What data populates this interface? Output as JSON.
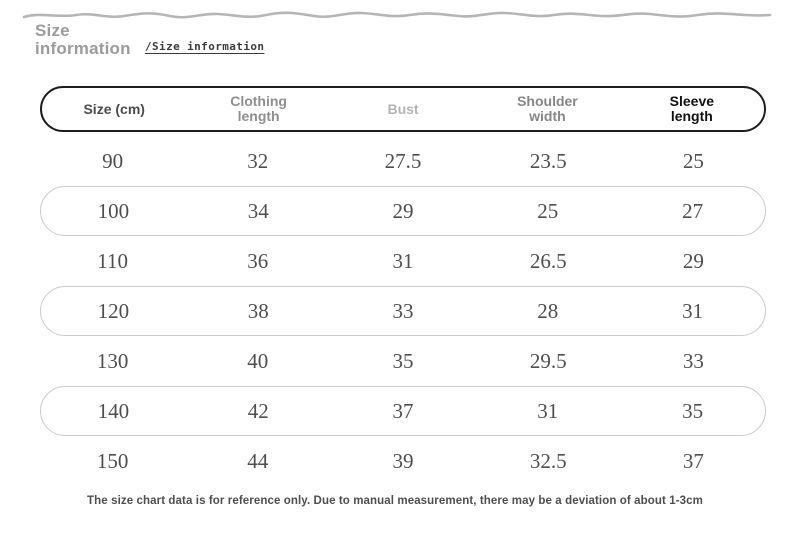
{
  "page_header": {
    "title": "Size\ninformation",
    "subtitle": "/Size information"
  },
  "chart_data": {
    "type": "table",
    "title": "Size information",
    "column_labels": [
      "Size (cm)",
      "Clothing\nlength",
      "Bust",
      "Shoulder\nwidth",
      "Sleeve\nlength"
    ],
    "columns": [
      "Size (cm)",
      "Clothing length",
      "Bust",
      "Shoulder width",
      "Sleeve length"
    ],
    "rows": [
      [
        "90",
        "32",
        "27.5",
        "23.5",
        "25"
      ],
      [
        "100",
        "34",
        "29",
        "25",
        "27"
      ],
      [
        "110",
        "36",
        "31",
        "26.5",
        "29"
      ],
      [
        "120",
        "38",
        "33",
        "28",
        "31"
      ],
      [
        "130",
        "40",
        "35",
        "29.5",
        "33"
      ],
      [
        "140",
        "42",
        "37",
        "31",
        "35"
      ],
      [
        "150",
        "44",
        "39",
        "32.5",
        "37"
      ]
    ]
  },
  "footer": {
    "note": "The size chart data is for reference only. Due to manual measurement, there may be a deviation of about 1-3cm"
  },
  "styles": {
    "title_color": "#9b9b9b",
    "wave_color": "#b5b5b5",
    "accent_border": "#1d1d1d",
    "pill_border": "#cacaca",
    "value_color": "#4e4e4e",
    "header_text_colors": [
      "#4a4a4a",
      "#8f8f8f",
      "#b3b3b3",
      "#868686",
      "#111111"
    ]
  }
}
